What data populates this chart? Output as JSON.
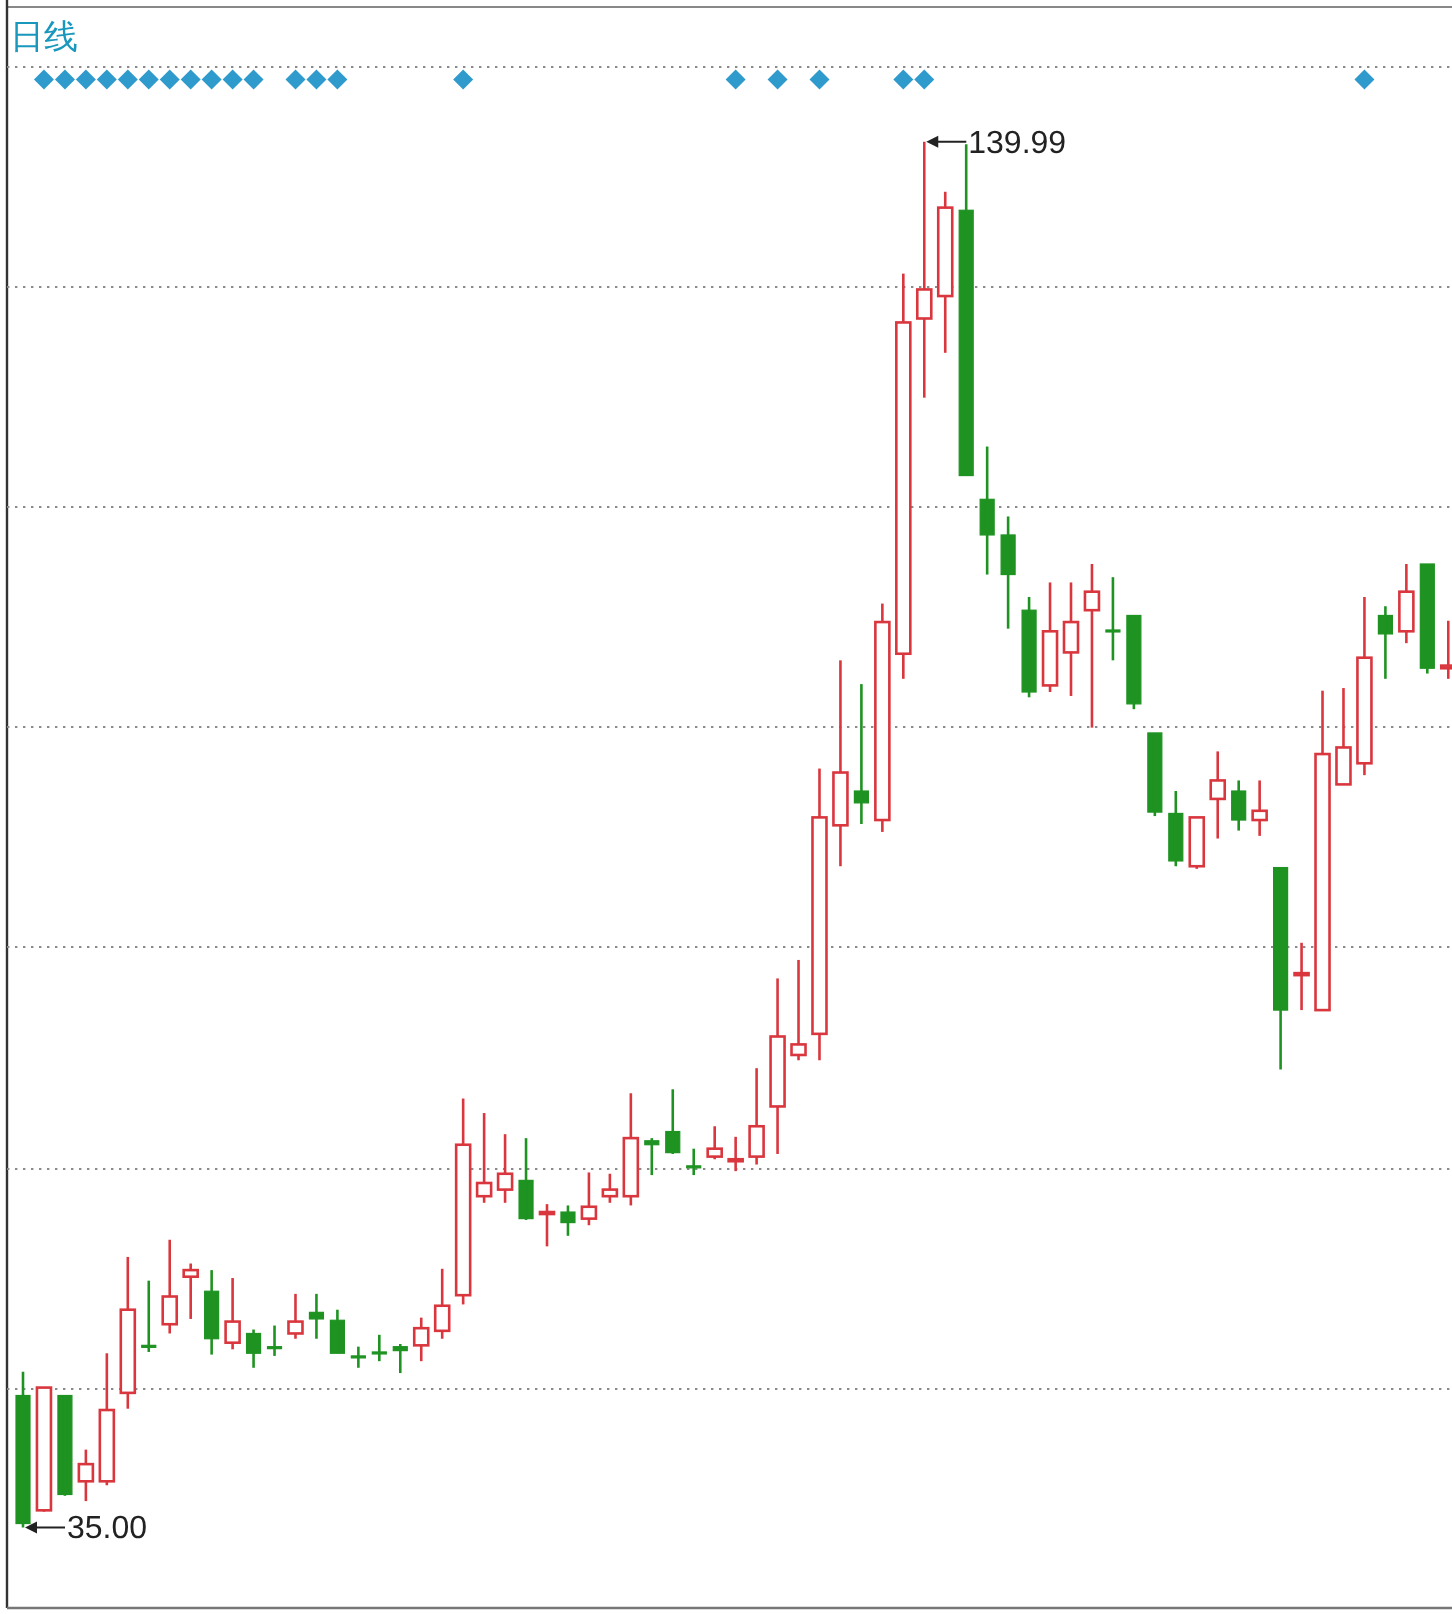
{
  "chart_data": {
    "type": "candlestick",
    "title": "日线",
    "categories": [
      null,
      null,
      null,
      null,
      null,
      null,
      null,
      null,
      null,
      null,
      null,
      null,
      null,
      null,
      null,
      null,
      null,
      null,
      null,
      null,
      null,
      null,
      null,
      null,
      null,
      null,
      null,
      null,
      null,
      null,
      null,
      null,
      null,
      null,
      null,
      null,
      null,
      null,
      null,
      null,
      null,
      null,
      null,
      null,
      null,
      null,
      null,
      null,
      null,
      null,
      null,
      null,
      null,
      null,
      null,
      null,
      null,
      null,
      null,
      null,
      null,
      null,
      null,
      null,
      null,
      null,
      null,
      null,
      null
    ],
    "ohlc": [
      [
        45.0,
        46.8,
        35.0,
        35.3
      ],
      [
        36.3,
        45.6,
        36.2,
        45.6
      ],
      [
        45.0,
        45.0,
        37.4,
        37.5
      ],
      [
        38.5,
        40.9,
        37.0,
        39.8
      ],
      [
        38.5,
        48.2,
        38.2,
        43.9
      ],
      [
        45.2,
        55.5,
        44.0,
        51.5
      ],
      [
        48.8,
        53.7,
        48.3,
        48.7
      ],
      [
        50.4,
        56.8,
        49.7,
        52.5
      ],
      [
        54.0,
        55.0,
        50.8,
        54.5
      ],
      [
        52.9,
        54.5,
        48.1,
        49.3
      ],
      [
        49.0,
        53.9,
        48.5,
        50.6
      ],
      [
        49.7,
        50.0,
        47.1,
        48.2
      ],
      [
        48.7,
        50.3,
        48.0,
        48.6
      ],
      [
        49.7,
        52.7,
        49.3,
        50.6
      ],
      [
        51.3,
        52.7,
        49.3,
        50.8
      ],
      [
        50.7,
        51.5,
        48.2,
        48.2
      ],
      [
        48.0,
        48.7,
        47.1,
        47.9
      ],
      [
        48.3,
        49.6,
        47.6,
        48.2
      ],
      [
        48.7,
        48.9,
        46.7,
        48.4
      ],
      [
        48.8,
        50.9,
        47.6,
        50.1
      ],
      [
        49.9,
        54.6,
        49.3,
        51.8
      ],
      [
        52.6,
        67.5,
        51.9,
        64.0
      ],
      [
        60.1,
        66.4,
        59.6,
        61.1
      ],
      [
        60.6,
        64.8,
        59.6,
        61.8
      ],
      [
        61.3,
        64.5,
        58.3,
        58.4
      ],
      [
        58.8,
        59.5,
        56.3,
        58.9
      ],
      [
        58.9,
        59.4,
        57.1,
        58.1
      ],
      [
        58.4,
        61.9,
        57.9,
        59.3
      ],
      [
        60.1,
        61.8,
        59.6,
        60.6
      ],
      [
        60.1,
        67.9,
        59.4,
        64.5
      ],
      [
        64.3,
        64.5,
        61.7,
        64.0
      ],
      [
        65.0,
        68.2,
        63.3,
        63.4
      ],
      [
        62.4,
        63.7,
        61.7,
        62.3
      ],
      [
        63.1,
        65.4,
        62.9,
        63.7
      ],
      [
        62.8,
        64.6,
        62.0,
        62.9
      ],
      [
        63.1,
        69.8,
        62.5,
        65.4
      ],
      [
        66.9,
        76.6,
        63.3,
        72.2
      ],
      [
        70.8,
        78.0,
        70.4,
        71.6
      ],
      [
        72.4,
        92.5,
        70.4,
        88.8
      ],
      [
        88.2,
        100.7,
        85.1,
        92.2
      ],
      [
        90.8,
        98.9,
        88.3,
        89.9
      ],
      [
        88.6,
        105.0,
        87.7,
        103.6
      ],
      [
        101.2,
        130.0,
        99.3,
        126.3
      ],
      [
        126.6,
        139.99,
        120.6,
        128.8
      ],
      [
        128.3,
        136.2,
        124.0,
        135.0
      ],
      [
        134.8,
        139.8,
        114.7,
        114.7
      ],
      [
        112.9,
        116.9,
        107.2,
        110.2
      ],
      [
        110.2,
        111.6,
        103.1,
        107.2
      ],
      [
        104.5,
        105.5,
        97.9,
        98.3
      ],
      [
        98.8,
        106.6,
        98.3,
        102.9
      ],
      [
        101.3,
        106.6,
        98.0,
        103.6
      ],
      [
        104.5,
        108.0,
        95.6,
        105.9
      ],
      [
        103.0,
        107.0,
        100.7,
        102.9
      ],
      [
        104.1,
        104.1,
        97.0,
        97.4
      ],
      [
        95.2,
        95.2,
        88.9,
        89.2
      ],
      [
        89.1,
        90.8,
        85.1,
        85.5
      ],
      [
        85.1,
        88.8,
        84.9,
        88.8
      ],
      [
        90.2,
        93.8,
        87.2,
        91.6
      ],
      [
        90.8,
        91.6,
        87.8,
        88.6
      ],
      [
        88.6,
        91.6,
        87.4,
        89.3
      ],
      [
        85.0,
        85.0,
        69.7,
        74.2
      ],
      [
        76.9,
        79.3,
        74.2,
        77.0
      ],
      [
        74.2,
        98.4,
        74.2,
        93.6
      ],
      [
        91.3,
        98.6,
        91.3,
        94.1
      ],
      [
        92.9,
        105.5,
        92.0,
        100.9
      ],
      [
        104.1,
        104.8,
        99.3,
        102.7
      ],
      [
        102.9,
        108.0,
        102.0,
        105.9
      ],
      [
        108.0,
        108.0,
        99.7,
        100.1
      ],
      [
        100.1,
        103.7,
        99.3,
        100.3
      ]
    ],
    "colors": [
      "#1f9322",
      "#d9363e",
      "#1f9322",
      "#d9363e",
      "#d9363e",
      "#d9363e",
      "#1f9322",
      "#d9363e",
      "#d9363e",
      "#1f9322",
      "#d9363e",
      "#1f9322",
      "#1f9322",
      "#d9363e",
      "#1f9322",
      "#1f9322",
      "#1f9322",
      "#1f9322",
      "#1f9322",
      "#d9363e",
      "#d9363e",
      "#d9363e",
      "#d9363e",
      "#d9363e",
      "#1f9322",
      "#d9363e",
      "#1f9322",
      "#d9363e",
      "#d9363e",
      "#d9363e",
      "#1f9322",
      "#1f9322",
      "#1f9322",
      "#d9363e",
      "#d9363e",
      "#d9363e",
      "#d9363e",
      "#d9363e",
      "#d9363e",
      "#d9363e",
      "#1f9322",
      "#d9363e",
      "#d9363e",
      "#d9363e",
      "#d9363e",
      "#1f9322",
      "#1f9322",
      "#1f9322",
      "#1f9322",
      "#d9363e",
      "#d9363e",
      "#d9363e",
      "#1f9322",
      "#1f9322",
      "#1f9322",
      "#1f9322",
      "#d9363e",
      "#d9363e",
      "#1f9322",
      "#d9363e",
      "#1f9322",
      "#d9363e",
      "#d9363e",
      "#d9363e",
      "#d9363e",
      "#1f9322",
      "#d9363e",
      "#1f9322",
      "#d9363e"
    ],
    "series": [
      {
        "type": "scatter",
        "marker": "diamond",
        "color": "#2f9bcd",
        "values": [
          null,
          144.7,
          144.7,
          144.7,
          144.7,
          144.7,
          144.7,
          144.7,
          144.7,
          144.7,
          144.7,
          144.7,
          null,
          144.7,
          144.7,
          144.7,
          null,
          null,
          null,
          null,
          null,
          144.7,
          null,
          null,
          null,
          null,
          null,
          null,
          null,
          null,
          null,
          null,
          null,
          null,
          144.7,
          null,
          144.7,
          null,
          144.7,
          null,
          null,
          null,
          144.7,
          144.7,
          null,
          null,
          null,
          null,
          null,
          null,
          null,
          null,
          null,
          null,
          null,
          null,
          null,
          null,
          null,
          null,
          null,
          null,
          null,
          null,
          144.7,
          null,
          null,
          null,
          null
        ]
      }
    ],
    "ylim": [
      28.9,
      150.2
    ],
    "yticks": [
      {
        "value": 45.6,
        "label": null
      },
      {
        "value": 62.3,
        "label": null
      },
      {
        "value": 79.0,
        "label": null
      },
      {
        "value": 95.7,
        "label": null
      },
      {
        "value": 112.4,
        "label": null
      },
      {
        "value": 129.0,
        "label": null
      },
      {
        "value": 145.7,
        "label": null
      }
    ],
    "grid": "y",
    "annotations": [
      "139.99",
      "35.00"
    ]
  }
}
